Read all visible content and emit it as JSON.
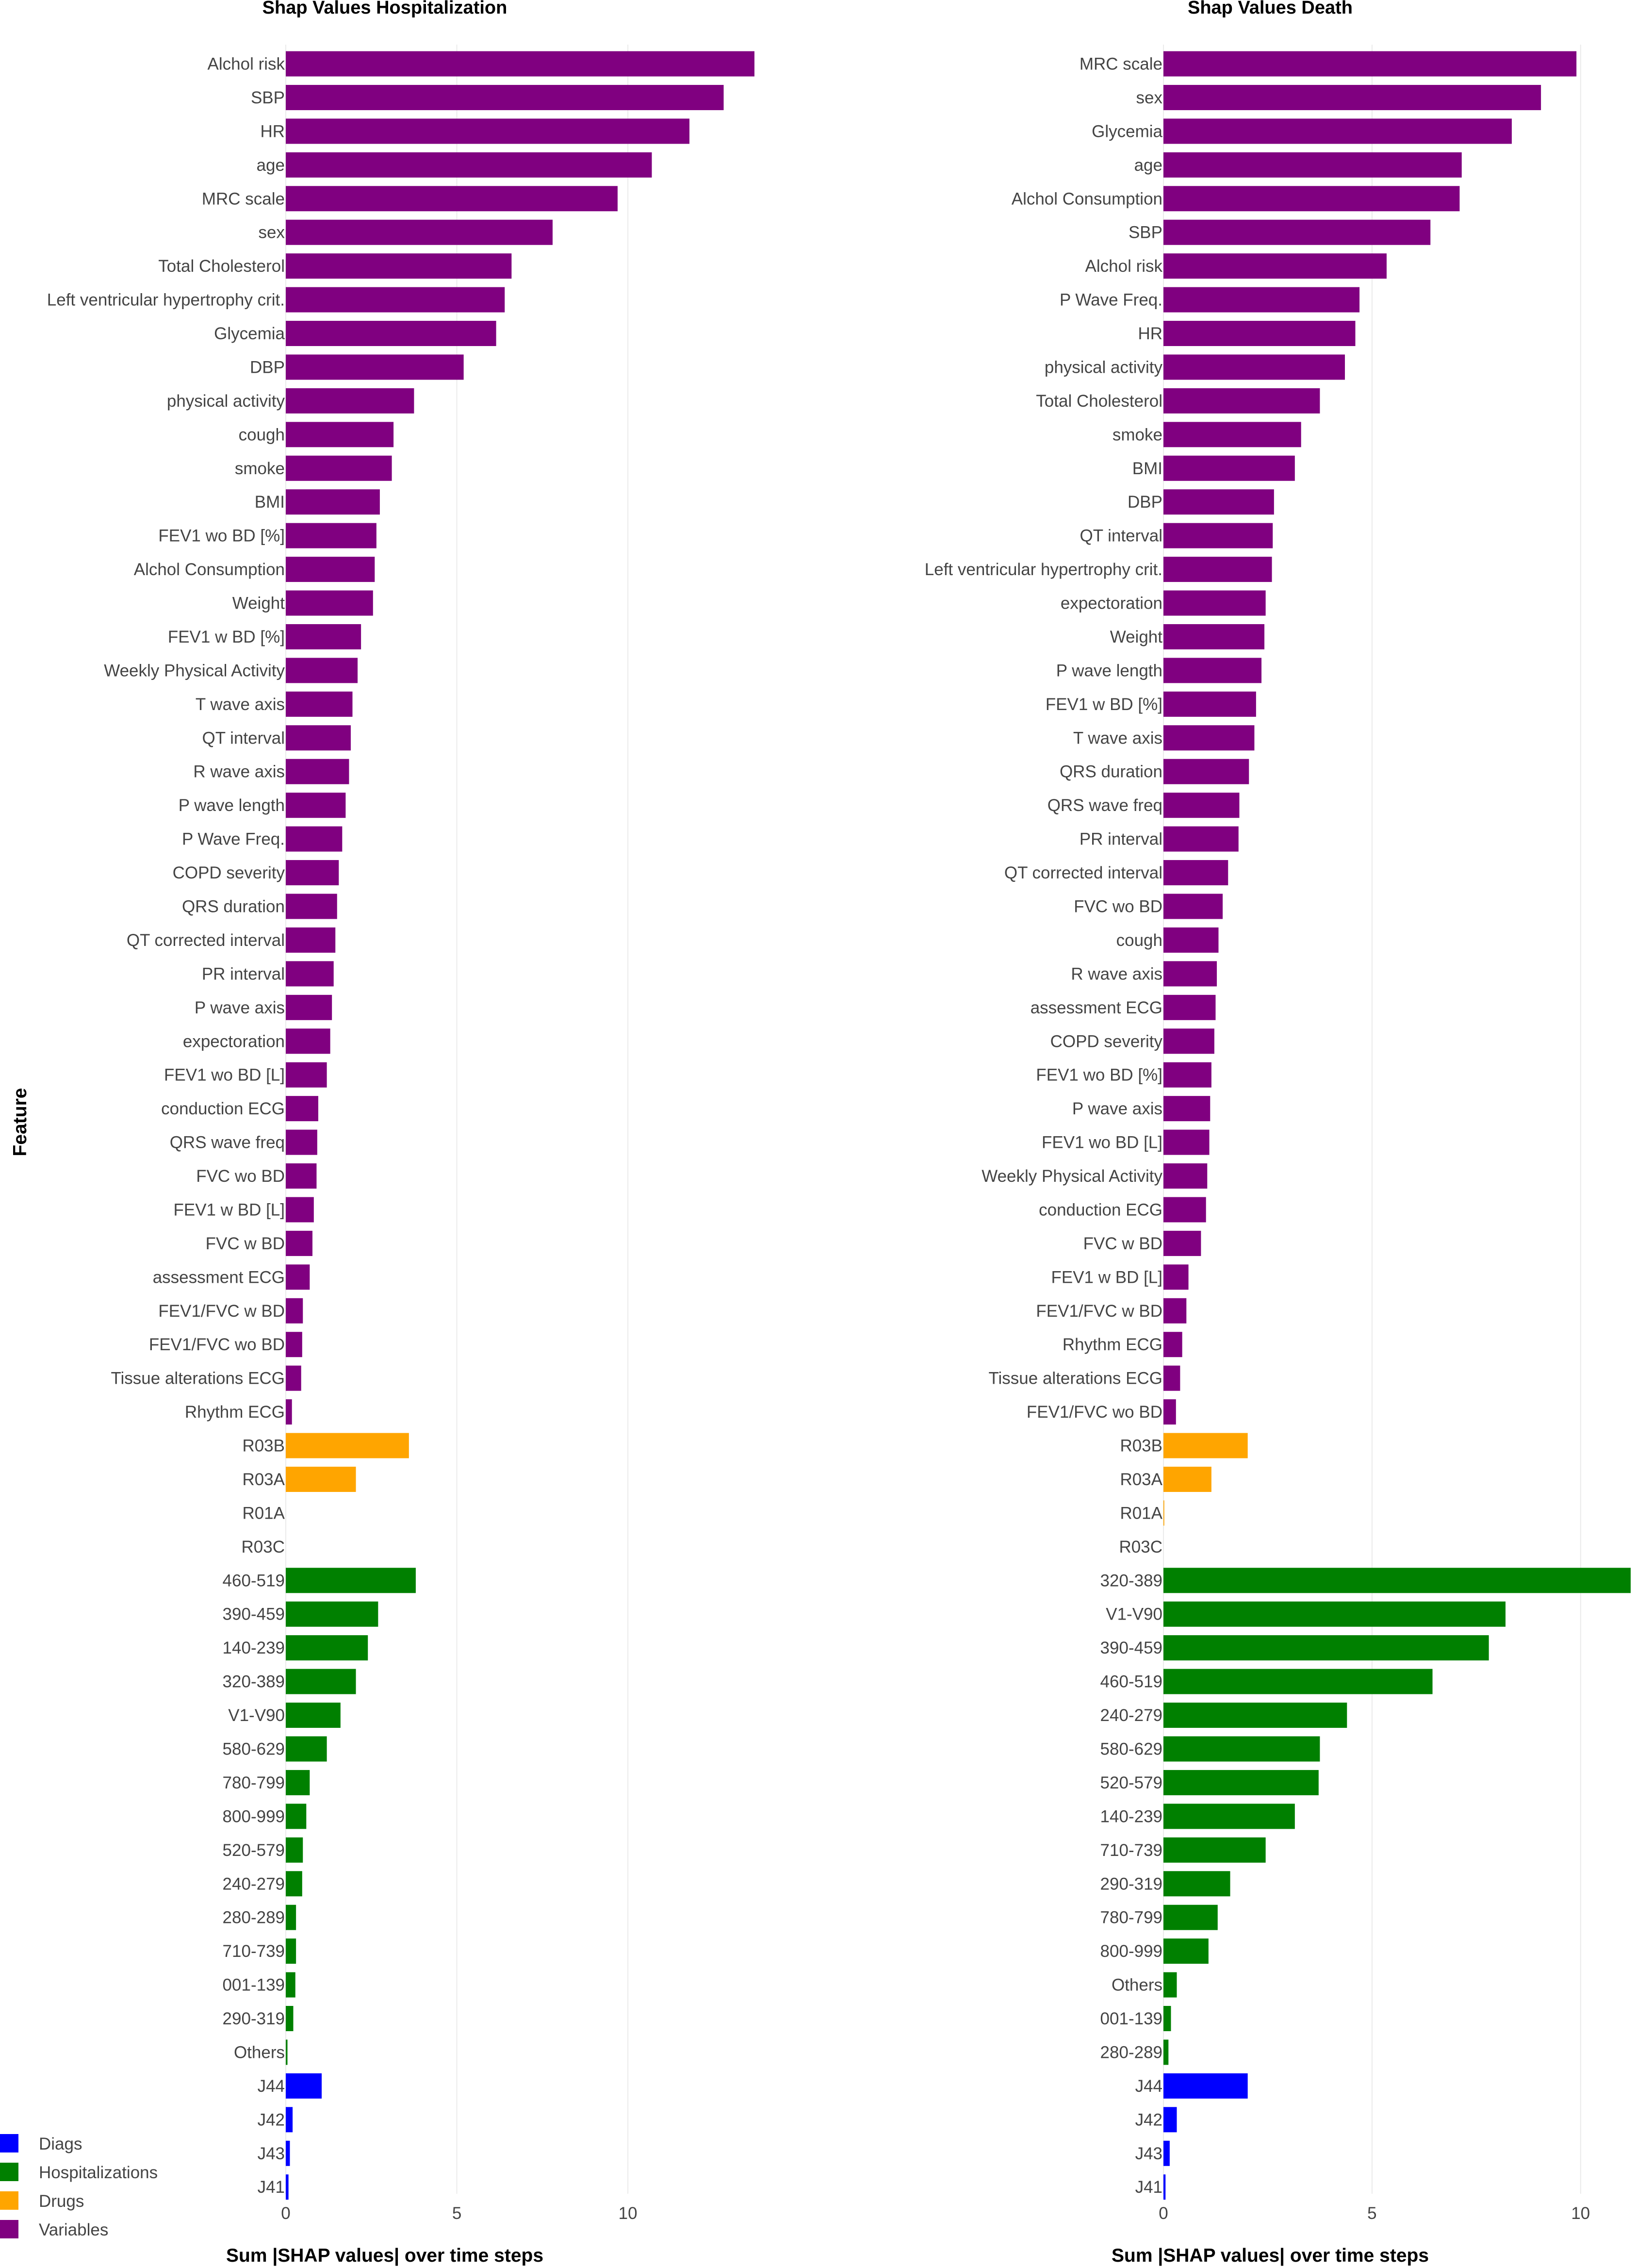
{
  "colors": {
    "Variables": "#800080",
    "Drugs": "#FFA500",
    "Hospitalizations": "#008000",
    "Diags": "#0000FF",
    "grid": "#ebebeb"
  },
  "y_axis_title": "Feature",
  "legend": [
    "Diags",
    "Hospitalizations",
    "Drugs",
    "Variables"
  ],
  "chart_data": [
    {
      "type": "bar",
      "orientation": "horizontal",
      "title": "Shap Values Hospitalization",
      "xlabel": "Sum |SHAP values| over time steps",
      "ylabel": "Feature",
      "xlim": [
        0,
        13.7
      ],
      "xticks": [
        0,
        5,
        10
      ],
      "legend_position": "bottom-left",
      "bars": [
        {
          "label": "Alchol risk",
          "value": 13.7,
          "group": "Variables"
        },
        {
          "label": "SBP",
          "value": 12.8,
          "group": "Variables"
        },
        {
          "label": "HR",
          "value": 11.8,
          "group": "Variables"
        },
        {
          "label": "age",
          "value": 10.7,
          "group": "Variables"
        },
        {
          "label": "MRC scale",
          "value": 9.7,
          "group": "Variables"
        },
        {
          "label": "sex",
          "value": 7.8,
          "group": "Variables"
        },
        {
          "label": "Total Cholesterol",
          "value": 6.6,
          "group": "Variables"
        },
        {
          "label": "Left ventricular hypertrophy crit.",
          "value": 6.4,
          "group": "Variables"
        },
        {
          "label": "Glycemia",
          "value": 6.15,
          "group": "Variables"
        },
        {
          "label": "DBP",
          "value": 5.2,
          "group": "Variables"
        },
        {
          "label": "physical activity",
          "value": 3.75,
          "group": "Variables"
        },
        {
          "label": "cough",
          "value": 3.15,
          "group": "Variables"
        },
        {
          "label": "smoke",
          "value": 3.1,
          "group": "Variables"
        },
        {
          "label": "BMI",
          "value": 2.75,
          "group": "Variables"
        },
        {
          "label": "FEV1 wo BD [%]",
          "value": 2.65,
          "group": "Variables"
        },
        {
          "label": "Alchol Consumption",
          "value": 2.6,
          "group": "Variables"
        },
        {
          "label": "Weight",
          "value": 2.55,
          "group": "Variables"
        },
        {
          "label": "FEV1 w BD [%]",
          "value": 2.2,
          "group": "Variables"
        },
        {
          "label": "Weekly Physical Activity",
          "value": 2.1,
          "group": "Variables"
        },
        {
          "label": "T wave axis",
          "value": 1.95,
          "group": "Variables"
        },
        {
          "label": "QT interval",
          "value": 1.9,
          "group": "Variables"
        },
        {
          "label": "R wave axis",
          "value": 1.85,
          "group": "Variables"
        },
        {
          "label": "P wave length",
          "value": 1.75,
          "group": "Variables"
        },
        {
          "label": "P Wave Freq.",
          "value": 1.65,
          "group": "Variables"
        },
        {
          "label": "COPD severity",
          "value": 1.55,
          "group": "Variables"
        },
        {
          "label": "QRS duration",
          "value": 1.5,
          "group": "Variables"
        },
        {
          "label": "QT corrected interval",
          "value": 1.45,
          "group": "Variables"
        },
        {
          "label": "PR interval",
          "value": 1.4,
          "group": "Variables"
        },
        {
          "label": "P wave axis",
          "value": 1.35,
          "group": "Variables"
        },
        {
          "label": "expectoration",
          "value": 1.3,
          "group": "Variables"
        },
        {
          "label": "FEV1 wo BD [L]",
          "value": 1.2,
          "group": "Variables"
        },
        {
          "label": "conduction ECG",
          "value": 0.95,
          "group": "Variables"
        },
        {
          "label": "QRS wave freq",
          "value": 0.92,
          "group": "Variables"
        },
        {
          "label": "FVC wo BD",
          "value": 0.9,
          "group": "Variables"
        },
        {
          "label": "FEV1 w BD [L]",
          "value": 0.82,
          "group": "Variables"
        },
        {
          "label": "FVC w BD",
          "value": 0.78,
          "group": "Variables"
        },
        {
          "label": "assessment ECG",
          "value": 0.7,
          "group": "Variables"
        },
        {
          "label": "FEV1/FVC w BD",
          "value": 0.5,
          "group": "Variables"
        },
        {
          "label": "FEV1/FVC wo BD",
          "value": 0.48,
          "group": "Variables"
        },
        {
          "label": "Tissue alterations ECG",
          "value": 0.45,
          "group": "Variables"
        },
        {
          "label": "Rhythm ECG",
          "value": 0.18,
          "group": "Variables"
        },
        {
          "label": "R03B",
          "value": 3.6,
          "group": "Drugs"
        },
        {
          "label": "R03A",
          "value": 2.05,
          "group": "Drugs"
        },
        {
          "label": "R01A",
          "value": 0.0,
          "group": "Drugs"
        },
        {
          "label": "R03C",
          "value": 0.0,
          "group": "Drugs"
        },
        {
          "label": "460-519",
          "value": 3.8,
          "group": "Hospitalizations"
        },
        {
          "label": "390-459",
          "value": 2.7,
          "group": "Hospitalizations"
        },
        {
          "label": "140-239",
          "value": 2.4,
          "group": "Hospitalizations"
        },
        {
          "label": "320-389",
          "value": 2.05,
          "group": "Hospitalizations"
        },
        {
          "label": "V1-V90",
          "value": 1.6,
          "group": "Hospitalizations"
        },
        {
          "label": "580-629",
          "value": 1.2,
          "group": "Hospitalizations"
        },
        {
          "label": "780-799",
          "value": 0.7,
          "group": "Hospitalizations"
        },
        {
          "label": "800-999",
          "value": 0.6,
          "group": "Hospitalizations"
        },
        {
          "label": "520-579",
          "value": 0.5,
          "group": "Hospitalizations"
        },
        {
          "label": "240-279",
          "value": 0.48,
          "group": "Hospitalizations"
        },
        {
          "label": "280-289",
          "value": 0.3,
          "group": "Hospitalizations"
        },
        {
          "label": "710-739",
          "value": 0.3,
          "group": "Hospitalizations"
        },
        {
          "label": "001-139",
          "value": 0.28,
          "group": "Hospitalizations"
        },
        {
          "label": "290-319",
          "value": 0.22,
          "group": "Hospitalizations"
        },
        {
          "label": "Others",
          "value": 0.05,
          "group": "Hospitalizations"
        },
        {
          "label": "J44",
          "value": 1.05,
          "group": "Diags"
        },
        {
          "label": "J42",
          "value": 0.2,
          "group": "Diags"
        },
        {
          "label": "J43",
          "value": 0.12,
          "group": "Diags"
        },
        {
          "label": "J41",
          "value": 0.08,
          "group": "Diags"
        }
      ]
    },
    {
      "type": "bar",
      "orientation": "horizontal",
      "title": "Shap Values Death",
      "xlabel": "Sum |SHAP values| over time steps",
      "ylabel": "Feature",
      "xlim": [
        0,
        11.2
      ],
      "xticks": [
        0,
        5,
        10
      ],
      "bars": [
        {
          "label": "MRC scale",
          "value": 9.9,
          "group": "Variables"
        },
        {
          "label": "sex",
          "value": 9.05,
          "group": "Variables"
        },
        {
          "label": "Glycemia",
          "value": 8.35,
          "group": "Variables"
        },
        {
          "label": "age",
          "value": 7.15,
          "group": "Variables"
        },
        {
          "label": "Alchol Consumption",
          "value": 7.1,
          "group": "Variables"
        },
        {
          "label": "SBP",
          "value": 6.4,
          "group": "Variables"
        },
        {
          "label": "Alchol risk",
          "value": 5.35,
          "group": "Variables"
        },
        {
          "label": "P Wave Freq.",
          "value": 4.7,
          "group": "Variables"
        },
        {
          "label": "HR",
          "value": 4.6,
          "group": "Variables"
        },
        {
          "label": "physical activity",
          "value": 4.35,
          "group": "Variables"
        },
        {
          "label": "Total Cholesterol",
          "value": 3.75,
          "group": "Variables"
        },
        {
          "label": "smoke",
          "value": 3.3,
          "group": "Variables"
        },
        {
          "label": "BMI",
          "value": 3.15,
          "group": "Variables"
        },
        {
          "label": "DBP",
          "value": 2.65,
          "group": "Variables"
        },
        {
          "label": "QT interval",
          "value": 2.62,
          "group": "Variables"
        },
        {
          "label": "Left ventricular hypertrophy crit.",
          "value": 2.6,
          "group": "Variables"
        },
        {
          "label": "expectoration",
          "value": 2.45,
          "group": "Variables"
        },
        {
          "label": "Weight",
          "value": 2.42,
          "group": "Variables"
        },
        {
          "label": "P wave length",
          "value": 2.35,
          "group": "Variables"
        },
        {
          "label": "FEV1 w BD [%]",
          "value": 2.22,
          "group": "Variables"
        },
        {
          "label": "T wave axis",
          "value": 2.18,
          "group": "Variables"
        },
        {
          "label": "QRS duration",
          "value": 2.05,
          "group": "Variables"
        },
        {
          "label": "QRS wave freq",
          "value": 1.82,
          "group": "Variables"
        },
        {
          "label": "PR interval",
          "value": 1.8,
          "group": "Variables"
        },
        {
          "label": "QT corrected interval",
          "value": 1.55,
          "group": "Variables"
        },
        {
          "label": "FVC wo BD",
          "value": 1.42,
          "group": "Variables"
        },
        {
          "label": "cough",
          "value": 1.32,
          "group": "Variables"
        },
        {
          "label": "R wave axis",
          "value": 1.28,
          "group": "Variables"
        },
        {
          "label": "assessment ECG",
          "value": 1.25,
          "group": "Variables"
        },
        {
          "label": "COPD severity",
          "value": 1.22,
          "group": "Variables"
        },
        {
          "label": "FEV1 wo BD [%]",
          "value": 1.15,
          "group": "Variables"
        },
        {
          "label": "P wave axis",
          "value": 1.12,
          "group": "Variables"
        },
        {
          "label": "FEV1 wo BD [L]",
          "value": 1.1,
          "group": "Variables"
        },
        {
          "label": "Weekly Physical Activity",
          "value": 1.05,
          "group": "Variables"
        },
        {
          "label": "conduction ECG",
          "value": 1.02,
          "group": "Variables"
        },
        {
          "label": "FVC w BD",
          "value": 0.9,
          "group": "Variables"
        },
        {
          "label": "FEV1 w BD [L]",
          "value": 0.6,
          "group": "Variables"
        },
        {
          "label": "FEV1/FVC w BD",
          "value": 0.55,
          "group": "Variables"
        },
        {
          "label": "Rhythm ECG",
          "value": 0.45,
          "group": "Variables"
        },
        {
          "label": "Tissue alterations ECG",
          "value": 0.4,
          "group": "Variables"
        },
        {
          "label": "FEV1/FVC wo BD",
          "value": 0.3,
          "group": "Variables"
        },
        {
          "label": "R03B",
          "value": 2.02,
          "group": "Drugs"
        },
        {
          "label": "R03A",
          "value": 1.15,
          "group": "Drugs"
        },
        {
          "label": "R01A",
          "value": 0.02,
          "group": "Drugs"
        },
        {
          "label": "R03C",
          "value": 0.0,
          "group": "Drugs"
        },
        {
          "label": "320-389",
          "value": 11.2,
          "group": "Hospitalizations"
        },
        {
          "label": "V1-V90",
          "value": 8.2,
          "group": "Hospitalizations"
        },
        {
          "label": "390-459",
          "value": 7.8,
          "group": "Hospitalizations"
        },
        {
          "label": "460-519",
          "value": 6.45,
          "group": "Hospitalizations"
        },
        {
          "label": "240-279",
          "value": 4.4,
          "group": "Hospitalizations"
        },
        {
          "label": "580-629",
          "value": 3.75,
          "group": "Hospitalizations"
        },
        {
          "label": "520-579",
          "value": 3.72,
          "group": "Hospitalizations"
        },
        {
          "label": "140-239",
          "value": 3.15,
          "group": "Hospitalizations"
        },
        {
          "label": "710-739",
          "value": 2.45,
          "group": "Hospitalizations"
        },
        {
          "label": "290-319",
          "value": 1.6,
          "group": "Hospitalizations"
        },
        {
          "label": "780-799",
          "value": 1.3,
          "group": "Hospitalizations"
        },
        {
          "label": "800-999",
          "value": 1.08,
          "group": "Hospitalizations"
        },
        {
          "label": "Others",
          "value": 0.32,
          "group": "Hospitalizations"
        },
        {
          "label": "001-139",
          "value": 0.18,
          "group": "Hospitalizations"
        },
        {
          "label": "280-289",
          "value": 0.12,
          "group": "Hospitalizations"
        },
        {
          "label": "J44",
          "value": 2.02,
          "group": "Diags"
        },
        {
          "label": "J42",
          "value": 0.32,
          "group": "Diags"
        },
        {
          "label": "J43",
          "value": 0.15,
          "group": "Diags"
        },
        {
          "label": "J41",
          "value": 0.05,
          "group": "Diags"
        }
      ]
    }
  ]
}
